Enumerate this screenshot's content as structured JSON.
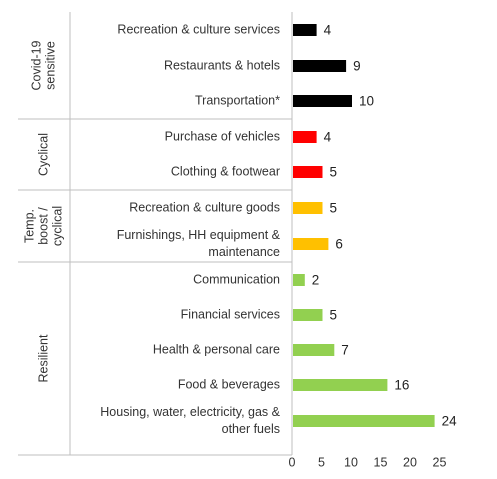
{
  "chart_data": {
    "type": "bar",
    "orientation": "horizontal",
    "xlim": [
      0,
      25
    ],
    "x_ticks": [
      "0",
      "5",
      "10",
      "15",
      "20",
      "25"
    ],
    "grid": false,
    "legend": "none",
    "groups": [
      {
        "label_lines": [
          "Covid-19",
          "sensitive"
        ],
        "color": "#000000"
      },
      {
        "label_lines": [
          "Cyclical"
        ],
        "color": "#ff0000"
      },
      {
        "label_lines": [
          "Temp.",
          "boost /",
          "cyclical"
        ],
        "color": "#ffc000"
      },
      {
        "label_lines": [
          "Resilient"
        ],
        "color": "#92d050"
      }
    ],
    "categories": [
      {
        "label_lines": [
          "Recreation & culture services"
        ],
        "value": 4,
        "group": 0
      },
      {
        "label_lines": [
          "Restaurants & hotels"
        ],
        "value": 9,
        "group": 0
      },
      {
        "label_lines": [
          "Transportation*"
        ],
        "value": 10,
        "group": 0
      },
      {
        "label_lines": [
          "Purchase of vehicles"
        ],
        "value": 4,
        "group": 1
      },
      {
        "label_lines": [
          "Clothing & footwear"
        ],
        "value": 5,
        "group": 1
      },
      {
        "label_lines": [
          "Recreation & culture goods"
        ],
        "value": 5,
        "group": 2
      },
      {
        "label_lines": [
          "Furnishings, HH equipment &",
          "maintenance"
        ],
        "value": 6,
        "group": 2
      },
      {
        "label_lines": [
          "Communication"
        ],
        "value": 2,
        "group": 3
      },
      {
        "label_lines": [
          "Financial services"
        ],
        "value": 5,
        "group": 3
      },
      {
        "label_lines": [
          "Health & personal care"
        ],
        "value": 7,
        "group": 3
      },
      {
        "label_lines": [
          "Food & beverages"
        ],
        "value": 16,
        "group": 3
      },
      {
        "label_lines": [
          "Housing, water, electricity, gas &",
          "other fuels"
        ],
        "value": 24,
        "group": 3
      }
    ]
  }
}
